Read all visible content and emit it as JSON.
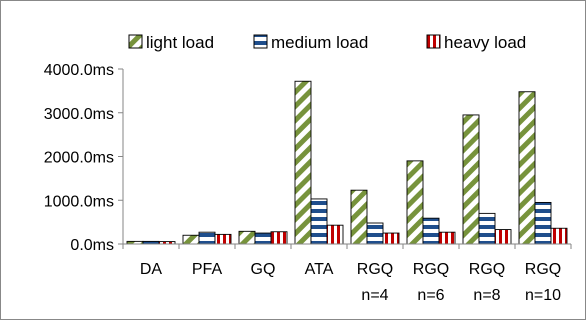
{
  "chart_data": {
    "type": "bar",
    "categories": [
      "DA",
      "PFA",
      "GQ",
      "ATA",
      "RGQ\nn=4",
      "RGQ\nn=6",
      "RGQ\nn=8",
      "RGQ\nn=10"
    ],
    "series": [
      {
        "name": "light load",
        "values": [
          60,
          200,
          290,
          3720,
          1230,
          1900,
          2950,
          3480
        ],
        "color": "#77933C",
        "pattern": "diagonal-stripes"
      },
      {
        "name": "medium load",
        "values": [
          60,
          270,
          250,
          1030,
          480,
          590,
          700,
          950
        ],
        "color": "#1F4E8C",
        "pattern": "horizontal-stripes"
      },
      {
        "name": "heavy load",
        "values": [
          55,
          220,
          280,
          430,
          250,
          270,
          330,
          360
        ],
        "color": "#C00000",
        "pattern": "vertical-stripes"
      }
    ],
    "yticks": [
      "0.0ms",
      "1000.0ms",
      "2000.0ms",
      "3000.0ms",
      "4000.0ms"
    ],
    "ylim": [
      0,
      4000
    ],
    "legend_position": "top",
    "grid": false,
    "title": "",
    "xlabel": "",
    "ylabel": ""
  }
}
